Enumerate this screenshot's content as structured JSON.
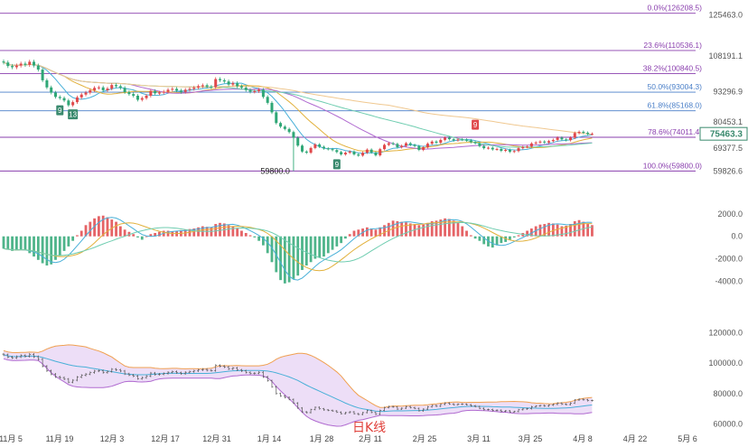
{
  "chart_data": {
    "type": "candlestick",
    "x_ticks": [
      "11月 5",
      "11月 19",
      "12月 3",
      "12月 17",
      "12月 31",
      "1月 14",
      "1月 28",
      "2月 11",
      "2月 25",
      "3月 11",
      "3月 25",
      "4月 8",
      "4月 22",
      "5月 6"
    ],
    "price_ticks": [
      "125463.0",
      "108191.1",
      "93296.9",
      "80453.1",
      "69377.5",
      "59826.6"
    ],
    "price_range": [
      55000,
      128000
    ],
    "current_price": "75463.3",
    "colors": {
      "up": "#e0484b",
      "down": "#2fa776",
      "fib": "#8a3fae",
      "fib_blue": "#4a7fc8",
      "price_tag": "#3a8a6e"
    },
    "fib_levels": [
      {
        "label": "0.0%(126208.5)",
        "price": 126208.5
      },
      {
        "label": "23.6%(110536.1)",
        "price": 110536.1
      },
      {
        "label": "38.2%(100840.5)",
        "price": 100840.5
      },
      {
        "label": "50.0%(93004.3)",
        "price": 93004.3
      },
      {
        "label": "61.8%(85168.0)",
        "price": 85168.0
      },
      {
        "label": "78.6%(74011.4)",
        "price": 74011.4
      },
      {
        "label": "100.0%(59800.0)",
        "price": 59800.0
      }
    ],
    "low_label": "59800.0",
    "markers": [
      {
        "text": "9",
        "index": 13,
        "type": "down"
      },
      {
        "text": "13",
        "index": 16,
        "type": "down"
      },
      {
        "text": "9",
        "index": 77,
        "type": "down"
      },
      {
        "text": "9",
        "index": 109,
        "type": "up"
      }
    ],
    "closes": [
      105500,
      104000,
      103500,
      104200,
      105000,
      104500,
      105800,
      104200,
      102500,
      98000,
      95000,
      92800,
      91000,
      90500,
      89500,
      87500,
      88800,
      90800,
      92000,
      92800,
      93800,
      94800,
      95000,
      93800,
      94500,
      96000,
      95500,
      94800,
      93000,
      92200,
      91500,
      89800,
      90500,
      91500,
      93500,
      92500,
      92800,
      93200,
      94000,
      94400,
      93700,
      93100,
      94000,
      94400,
      94900,
      95500,
      95900,
      95300,
      95100,
      98500,
      98000,
      97500,
      96200,
      96800,
      95500,
      94900,
      93900,
      93200,
      93400,
      94000,
      91000,
      88500,
      84500,
      80000,
      78500,
      77500,
      76200,
      73800,
      70500,
      68000,
      67500,
      69500,
      71000,
      70000,
      69300,
      69000,
      68600,
      67800,
      66800,
      67500,
      68000,
      66800,
      66300,
      67500,
      68800,
      67600,
      66400,
      69000,
      70800,
      71500,
      71200,
      69800,
      70400,
      71500,
      70800,
      70300,
      68700,
      69800,
      71300,
      72200,
      71700,
      72900,
      73800,
      73200,
      72700,
      73100,
      73000,
      72700,
      72000,
      71500,
      70300,
      69400,
      69600,
      68900,
      69100,
      68300,
      68700,
      67900,
      68200,
      69400,
      69900,
      70100,
      71400,
      71800,
      72200,
      71800,
      72400,
      72900,
      73800,
      73100,
      72800,
      73800,
      75800,
      76300,
      75900,
      75400,
      75463
    ],
    "macd_ticks": [
      "2000.0",
      "0.0",
      "-2000.0",
      "-4000.0"
    ],
    "macd_range": [
      -5500,
      3200
    ],
    "macd": [
      -1100,
      -1200,
      -1300,
      -1250,
      -1150,
      -1200,
      -1500,
      -1800,
      -2100,
      -2400,
      -2600,
      -2500,
      -2100,
      -1700,
      -1300,
      -900,
      -400,
      100,
      500,
      1000,
      1300,
      1600,
      1800,
      1850,
      1700,
      1500,
      1300,
      900,
      600,
      400,
      200,
      -100,
      -300,
      0,
      200,
      300,
      400,
      500,
      500,
      450,
      500,
      550,
      600,
      650,
      700,
      800,
      900,
      850,
      800,
      1100,
      1200,
      1150,
      1000,
      900,
      750,
      500,
      300,
      100,
      -100,
      -400,
      -800,
      -1500,
      -2300,
      -3200,
      -3900,
      -4200,
      -4100,
      -3800,
      -3500,
      -3000,
      -2600,
      -2300,
      -2000,
      -1900,
      -1800,
      -1500,
      -1200,
      -900,
      -600,
      -200,
      200,
      500,
      600,
      700,
      800,
      700,
      600,
      800,
      1000,
      1200,
      1400,
      1350,
      1300,
      1250,
      1150,
      1100,
      1000,
      1050,
      1200,
      1350,
      1400,
      1500,
      1600,
      1550,
      1400,
      1200,
      900,
      500,
      100,
      -200,
      -400,
      -700,
      -900,
      -1000,
      -800,
      -600,
      -500,
      -300,
      -100,
      100,
      300,
      500,
      700,
      900,
      1050,
      1100,
      1200,
      1150,
      1050,
      900,
      950,
      1100,
      1350,
      1450,
      1300,
      1100,
      1000
    ],
    "bb_ticks": [
      "120000.0",
      "100000.0",
      "80000.0",
      "60000.0"
    ],
    "bb_range": [
      55000,
      125000
    ],
    "watermark": "日K线"
  }
}
